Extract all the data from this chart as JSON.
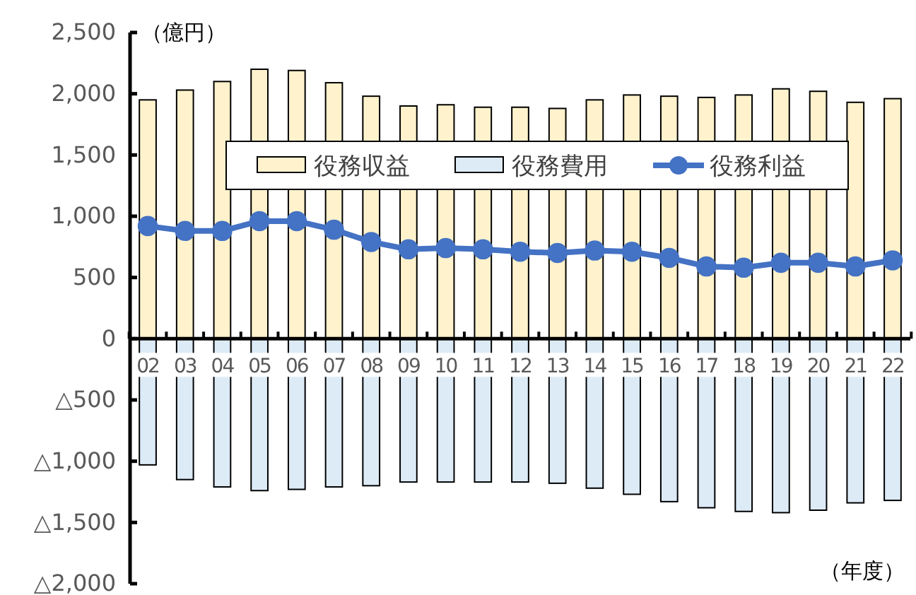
{
  "chart_data": {
    "type": "bar",
    "stacked": true,
    "categories": [
      "02",
      "03",
      "04",
      "05",
      "06",
      "07",
      "08",
      "09",
      "10",
      "11",
      "12",
      "13",
      "14",
      "15",
      "16",
      "17",
      "18",
      "19",
      "20",
      "21",
      "22"
    ],
    "series": [
      {
        "name": "役務収益",
        "color": "#fff2cc",
        "values": [
          1950,
          2030,
          2100,
          2200,
          2190,
          2090,
          1980,
          1900,
          1910,
          1890,
          1890,
          1880,
          1950,
          1990,
          1980,
          1970,
          1990,
          2040,
          2020,
          1930,
          1960
        ]
      },
      {
        "name": "役務費用",
        "color": "#ddebf7",
        "values": [
          -1030,
          -1150,
          -1210,
          -1240,
          -1230,
          -1210,
          -1200,
          -1170,
          -1170,
          -1170,
          -1170,
          -1180,
          -1220,
          -1270,
          -1330,
          -1380,
          -1410,
          -1420,
          -1400,
          -1340,
          -1320
        ]
      },
      {
        "name": "役務利益",
        "type": "line",
        "color": "#4472c4",
        "values": [
          920,
          880,
          880,
          960,
          960,
          890,
          790,
          730,
          740,
          730,
          710,
          700,
          720,
          710,
          660,
          590,
          580,
          620,
          620,
          590,
          640
        ]
      }
    ],
    "ylim": [
      -2000,
      2500
    ],
    "yticks": [
      {
        "value": -2000,
        "label": "△2,000"
      },
      {
        "value": -1500,
        "label": "△1,500"
      },
      {
        "value": -1000,
        "label": "△1,000"
      },
      {
        "value": -500,
        "label": "△500"
      },
      0,
      500,
      {
        "value": 1000,
        "label": "1,000"
      },
      {
        "value": 1500,
        "label": "1,500"
      },
      {
        "value": 2000,
        "label": "2,000"
      },
      {
        "value": 2500,
        "label": "2,500"
      }
    ],
    "ylabel": "（億円）",
    "xlabel": "（年度）",
    "legend": "top",
    "marker": "circle",
    "line_style": "solid",
    "grid": false
  }
}
